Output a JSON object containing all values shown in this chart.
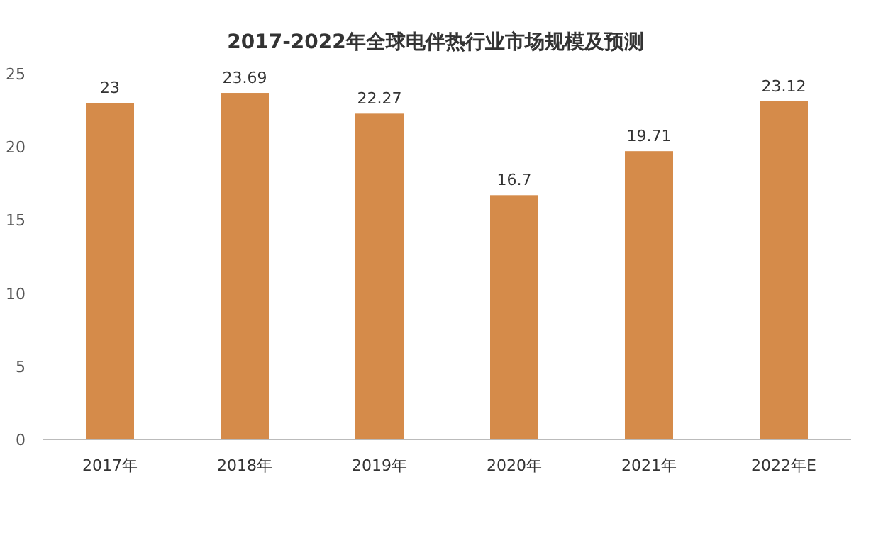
{
  "chart_data": {
    "type": "bar",
    "title": "2017-2022年全球电伴热行业市场规模及预测",
    "categories": [
      "2017年",
      "2018年",
      "2019年",
      "2020年",
      "2021年",
      "2022年E"
    ],
    "values": [
      23,
      23.69,
      22.27,
      16.7,
      19.71,
      23.12
    ],
    "color": "#d58b4a",
    "ylim": [
      0,
      25
    ],
    "yticks": [
      0,
      5,
      10,
      15,
      20,
      25
    ],
    "grid": false,
    "data_labels": true
  }
}
